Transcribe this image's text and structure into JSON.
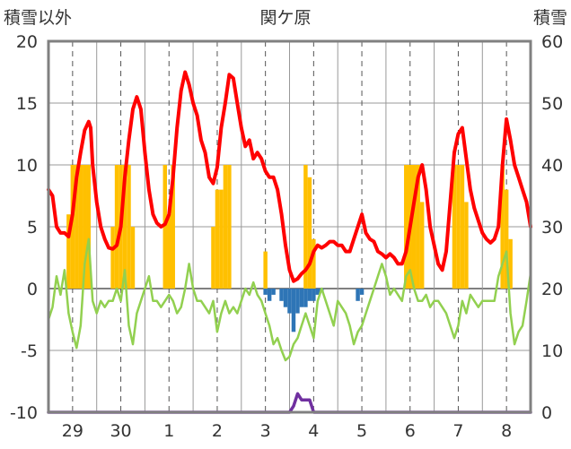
{
  "chart_data": {
    "type": "combo",
    "title": "関ケ原",
    "ylabel_left": "積雪以外",
    "ylabel_right": "積雪",
    "y_left_range": [
      -10,
      20
    ],
    "y_left_ticks": [
      "20",
      "15",
      "10",
      "5",
      "0",
      "-5",
      "-10"
    ],
    "y_right_range": [
      0,
      60
    ],
    "y_right_ticks": [
      "60",
      "50",
      "40",
      "30",
      "20",
      "10",
      "0"
    ],
    "x_ticks": [
      "29",
      "30",
      "1",
      "2",
      "3",
      "4",
      "5",
      "6",
      "7",
      "8"
    ],
    "grid": true,
    "x_range_hours": [
      0,
      240
    ],
    "tick_hours": [
      12,
      36,
      60,
      84,
      108,
      132,
      156,
      180,
      204,
      228
    ],
    "colors": {
      "humidity_like_red": "#ff0000",
      "temperature_green": "#92d050",
      "sunshine_bars": "#ffc000",
      "precip_bars": "#2e75b6",
      "snow_depth": "#7030a0",
      "zero_line": "#808080",
      "grid": "#999999",
      "frame": "#808080"
    },
    "series": [
      {
        "kind": "line",
        "axis": "left",
        "color": "#ff0000",
        "points": [
          [
            0,
            8
          ],
          [
            2,
            7.5
          ],
          [
            4,
            5
          ],
          [
            6,
            4.5
          ],
          [
            8,
            4.5
          ],
          [
            10,
            4.2
          ],
          [
            12,
            6
          ],
          [
            14,
            9
          ],
          [
            16,
            11
          ],
          [
            18,
            12.8
          ],
          [
            20,
            13.5
          ],
          [
            21,
            13
          ],
          [
            22,
            10
          ],
          [
            24,
            7
          ],
          [
            26,
            5
          ],
          [
            28,
            4
          ],
          [
            30,
            3.3
          ],
          [
            32,
            3.2
          ],
          [
            34,
            3.5
          ],
          [
            36,
            5
          ],
          [
            38,
            9
          ],
          [
            40,
            12
          ],
          [
            42,
            14.5
          ],
          [
            44,
            15.5
          ],
          [
            46,
            14.5
          ],
          [
            48,
            11
          ],
          [
            50,
            8
          ],
          [
            52,
            6
          ],
          [
            54,
            5.3
          ],
          [
            56,
            5
          ],
          [
            58,
            5.2
          ],
          [
            60,
            6
          ],
          [
            62,
            9
          ],
          [
            64,
            13
          ],
          [
            66,
            16
          ],
          [
            68,
            17.5
          ],
          [
            70,
            16.5
          ],
          [
            72,
            15
          ],
          [
            74,
            14
          ],
          [
            76,
            12
          ],
          [
            78,
            11
          ],
          [
            80,
            9
          ],
          [
            82,
            8.5
          ],
          [
            84,
            9.8
          ],
          [
            86,
            13
          ],
          [
            88,
            15
          ],
          [
            90,
            17.3
          ],
          [
            92,
            17
          ],
          [
            94,
            15
          ],
          [
            96,
            13
          ],
          [
            98,
            11.5
          ],
          [
            100,
            12
          ],
          [
            102,
            10.5
          ],
          [
            104,
            11
          ],
          [
            106,
            10.5
          ],
          [
            108,
            9.5
          ],
          [
            110,
            9
          ],
          [
            112,
            9
          ],
          [
            114,
            8
          ],
          [
            116,
            6
          ],
          [
            118,
            3.5
          ],
          [
            120,
            1.5
          ],
          [
            122,
            0.6
          ],
          [
            124,
            0.8
          ],
          [
            126,
            1.2
          ],
          [
            128,
            1.5
          ],
          [
            130,
            2
          ],
          [
            132,
            3
          ],
          [
            134,
            3.5
          ],
          [
            136,
            3.3
          ],
          [
            138,
            3.5
          ],
          [
            140,
            3.8
          ],
          [
            142,
            3.8
          ],
          [
            144,
            3.5
          ],
          [
            146,
            3.5
          ],
          [
            148,
            3
          ],
          [
            150,
            3
          ],
          [
            152,
            4
          ],
          [
            154,
            5
          ],
          [
            156,
            6
          ],
          [
            158,
            4.5
          ],
          [
            160,
            4
          ],
          [
            162,
            3.8
          ],
          [
            164,
            3
          ],
          [
            166,
            2.8
          ],
          [
            168,
            2.5
          ],
          [
            170,
            2.8
          ],
          [
            172,
            2.5
          ],
          [
            174,
            2
          ],
          [
            176,
            2
          ],
          [
            178,
            3
          ],
          [
            180,
            5
          ],
          [
            182,
            7
          ],
          [
            184,
            9
          ],
          [
            186,
            10
          ],
          [
            188,
            8
          ],
          [
            190,
            5
          ],
          [
            192,
            3.5
          ],
          [
            194,
            2
          ],
          [
            196,
            1.5
          ],
          [
            198,
            3
          ],
          [
            200,
            7
          ],
          [
            202,
            11
          ],
          [
            204,
            12.5
          ],
          [
            206,
            13
          ],
          [
            208,
            10.5
          ],
          [
            210,
            8
          ],
          [
            212,
            6.5
          ],
          [
            214,
            5.5
          ],
          [
            216,
            4.5
          ],
          [
            218,
            4
          ],
          [
            220,
            3.7
          ],
          [
            222,
            4
          ],
          [
            224,
            5
          ],
          [
            226,
            10
          ],
          [
            228,
            13.7
          ],
          [
            230,
            12
          ],
          [
            232,
            10
          ],
          [
            234,
            9
          ],
          [
            236,
            8
          ],
          [
            238,
            7
          ],
          [
            240,
            5
          ]
        ]
      },
      {
        "kind": "line",
        "axis": "left",
        "color": "#92d050",
        "points": [
          [
            0,
            -2.5
          ],
          [
            2,
            -1.5
          ],
          [
            4,
            1
          ],
          [
            6,
            -0.5
          ],
          [
            8,
            1.5
          ],
          [
            10,
            -2
          ],
          [
            12,
            -3.5
          ],
          [
            14,
            -4.8
          ],
          [
            16,
            -3
          ],
          [
            18,
            2
          ],
          [
            20,
            4
          ],
          [
            22,
            -1
          ],
          [
            24,
            -2
          ],
          [
            26,
            -1
          ],
          [
            28,
            -1.5
          ],
          [
            30,
            -1
          ],
          [
            32,
            -1
          ],
          [
            34,
            0
          ],
          [
            36,
            -1
          ],
          [
            38,
            1.5
          ],
          [
            40,
            -3
          ],
          [
            42,
            -4.5
          ],
          [
            44,
            -2
          ],
          [
            46,
            -1
          ],
          [
            48,
            0
          ],
          [
            50,
            1
          ],
          [
            52,
            -1
          ],
          [
            54,
            -1
          ],
          [
            56,
            -1.5
          ],
          [
            58,
            -1
          ],
          [
            60,
            -0.5
          ],
          [
            62,
            -1
          ],
          [
            64,
            -2
          ],
          [
            66,
            -1.5
          ],
          [
            68,
            0
          ],
          [
            70,
            2
          ],
          [
            72,
            0
          ],
          [
            74,
            -1
          ],
          [
            76,
            -1
          ],
          [
            78,
            -1.5
          ],
          [
            80,
            -2
          ],
          [
            82,
            -1
          ],
          [
            84,
            -3.5
          ],
          [
            86,
            -2
          ],
          [
            88,
            -1
          ],
          [
            90,
            -2
          ],
          [
            92,
            -1.5
          ],
          [
            94,
            -2
          ],
          [
            96,
            -1
          ],
          [
            98,
            0
          ],
          [
            100,
            -0.5
          ],
          [
            102,
            0.5
          ],
          [
            104,
            -0.5
          ],
          [
            106,
            -1
          ],
          [
            108,
            -2
          ],
          [
            110,
            -3
          ],
          [
            112,
            -4.5
          ],
          [
            114,
            -4
          ],
          [
            116,
            -5
          ],
          [
            118,
            -5.8
          ],
          [
            120,
            -5.5
          ],
          [
            122,
            -4.5
          ],
          [
            124,
            -4
          ],
          [
            126,
            -3
          ],
          [
            128,
            -2
          ],
          [
            130,
            -3
          ],
          [
            132,
            -4
          ],
          [
            134,
            -1
          ],
          [
            136,
            0
          ],
          [
            138,
            -1
          ],
          [
            140,
            -2
          ],
          [
            142,
            -3
          ],
          [
            144,
            -1
          ],
          [
            146,
            -1.5
          ],
          [
            148,
            -2
          ],
          [
            150,
            -3
          ],
          [
            152,
            -4.5
          ],
          [
            154,
            -3.5
          ],
          [
            156,
            -3
          ],
          [
            158,
            -2
          ],
          [
            160,
            -1
          ],
          [
            162,
            0
          ],
          [
            164,
            1
          ],
          [
            166,
            2
          ],
          [
            168,
            1
          ],
          [
            170,
            -0.5
          ],
          [
            172,
            0
          ],
          [
            174,
            -0.5
          ],
          [
            176,
            -1
          ],
          [
            178,
            1
          ],
          [
            180,
            1.5
          ],
          [
            182,
            0
          ],
          [
            184,
            -1
          ],
          [
            186,
            -1
          ],
          [
            188,
            -0.5
          ],
          [
            190,
            -1.5
          ],
          [
            192,
            -1
          ],
          [
            194,
            -1
          ],
          [
            196,
            -1.5
          ],
          [
            198,
            -2
          ],
          [
            200,
            -3
          ],
          [
            202,
            -4
          ],
          [
            204,
            -3
          ],
          [
            206,
            -1
          ],
          [
            208,
            -2
          ],
          [
            210,
            -0.5
          ],
          [
            212,
            -1
          ],
          [
            214,
            -1.5
          ],
          [
            216,
            -1
          ],
          [
            218,
            -1
          ],
          [
            220,
            -1
          ],
          [
            222,
            -1
          ],
          [
            224,
            1
          ],
          [
            226,
            2
          ],
          [
            228,
            3
          ],
          [
            230,
            -2
          ],
          [
            232,
            -4.5
          ],
          [
            234,
            -3.5
          ],
          [
            236,
            -3
          ],
          [
            238,
            -1
          ],
          [
            240,
            1.2
          ]
        ]
      },
      {
        "kind": "bars",
        "axis": "left",
        "color": "#ffc000",
        "bars": [
          [
            10,
            6
          ],
          [
            12,
            10
          ],
          [
            14,
            10
          ],
          [
            16,
            10
          ],
          [
            18,
            10
          ],
          [
            20,
            10
          ],
          [
            32,
            5
          ],
          [
            34,
            10
          ],
          [
            36,
            10
          ],
          [
            38,
            10
          ],
          [
            40,
            10
          ],
          [
            42,
            5
          ],
          [
            58,
            10
          ],
          [
            60,
            6
          ],
          [
            62,
            10
          ],
          [
            82,
            5
          ],
          [
            84,
            8
          ],
          [
            86,
            8
          ],
          [
            88,
            10
          ],
          [
            90,
            10
          ],
          [
            108,
            3
          ],
          [
            128,
            10
          ],
          [
            130,
            9
          ],
          [
            132,
            4
          ],
          [
            178,
            10
          ],
          [
            180,
            10
          ],
          [
            182,
            10
          ],
          [
            184,
            10
          ],
          [
            186,
            7
          ],
          [
            202,
            10
          ],
          [
            204,
            10
          ],
          [
            206,
            10
          ],
          [
            208,
            7
          ],
          [
            226,
            10
          ],
          [
            228,
            8
          ],
          [
            230,
            4
          ]
        ]
      },
      {
        "kind": "bars",
        "axis": "left",
        "color": "#2e75b6",
        "bars": [
          [
            108,
            -0.5
          ],
          [
            110,
            -1
          ],
          [
            112,
            -0.5
          ],
          [
            116,
            -1
          ],
          [
            118,
            -1.5
          ],
          [
            120,
            -2
          ],
          [
            122,
            -3.5
          ],
          [
            124,
            -2
          ],
          [
            126,
            -1.5
          ],
          [
            128,
            -1.5
          ],
          [
            130,
            -1
          ],
          [
            132,
            -1
          ],
          [
            134,
            -0.5
          ],
          [
            136,
            -0.3
          ],
          [
            154,
            -1
          ],
          [
            156,
            -0.5
          ]
        ]
      },
      {
        "kind": "line",
        "axis": "right",
        "color": "#7030a0",
        "points": [
          [
            0,
            0
          ],
          [
            120,
            0
          ],
          [
            122,
            1
          ],
          [
            124,
            3
          ],
          [
            126,
            2
          ],
          [
            128,
            2
          ],
          [
            130,
            2
          ],
          [
            132,
            0
          ],
          [
            240,
            0
          ]
        ]
      }
    ]
  }
}
